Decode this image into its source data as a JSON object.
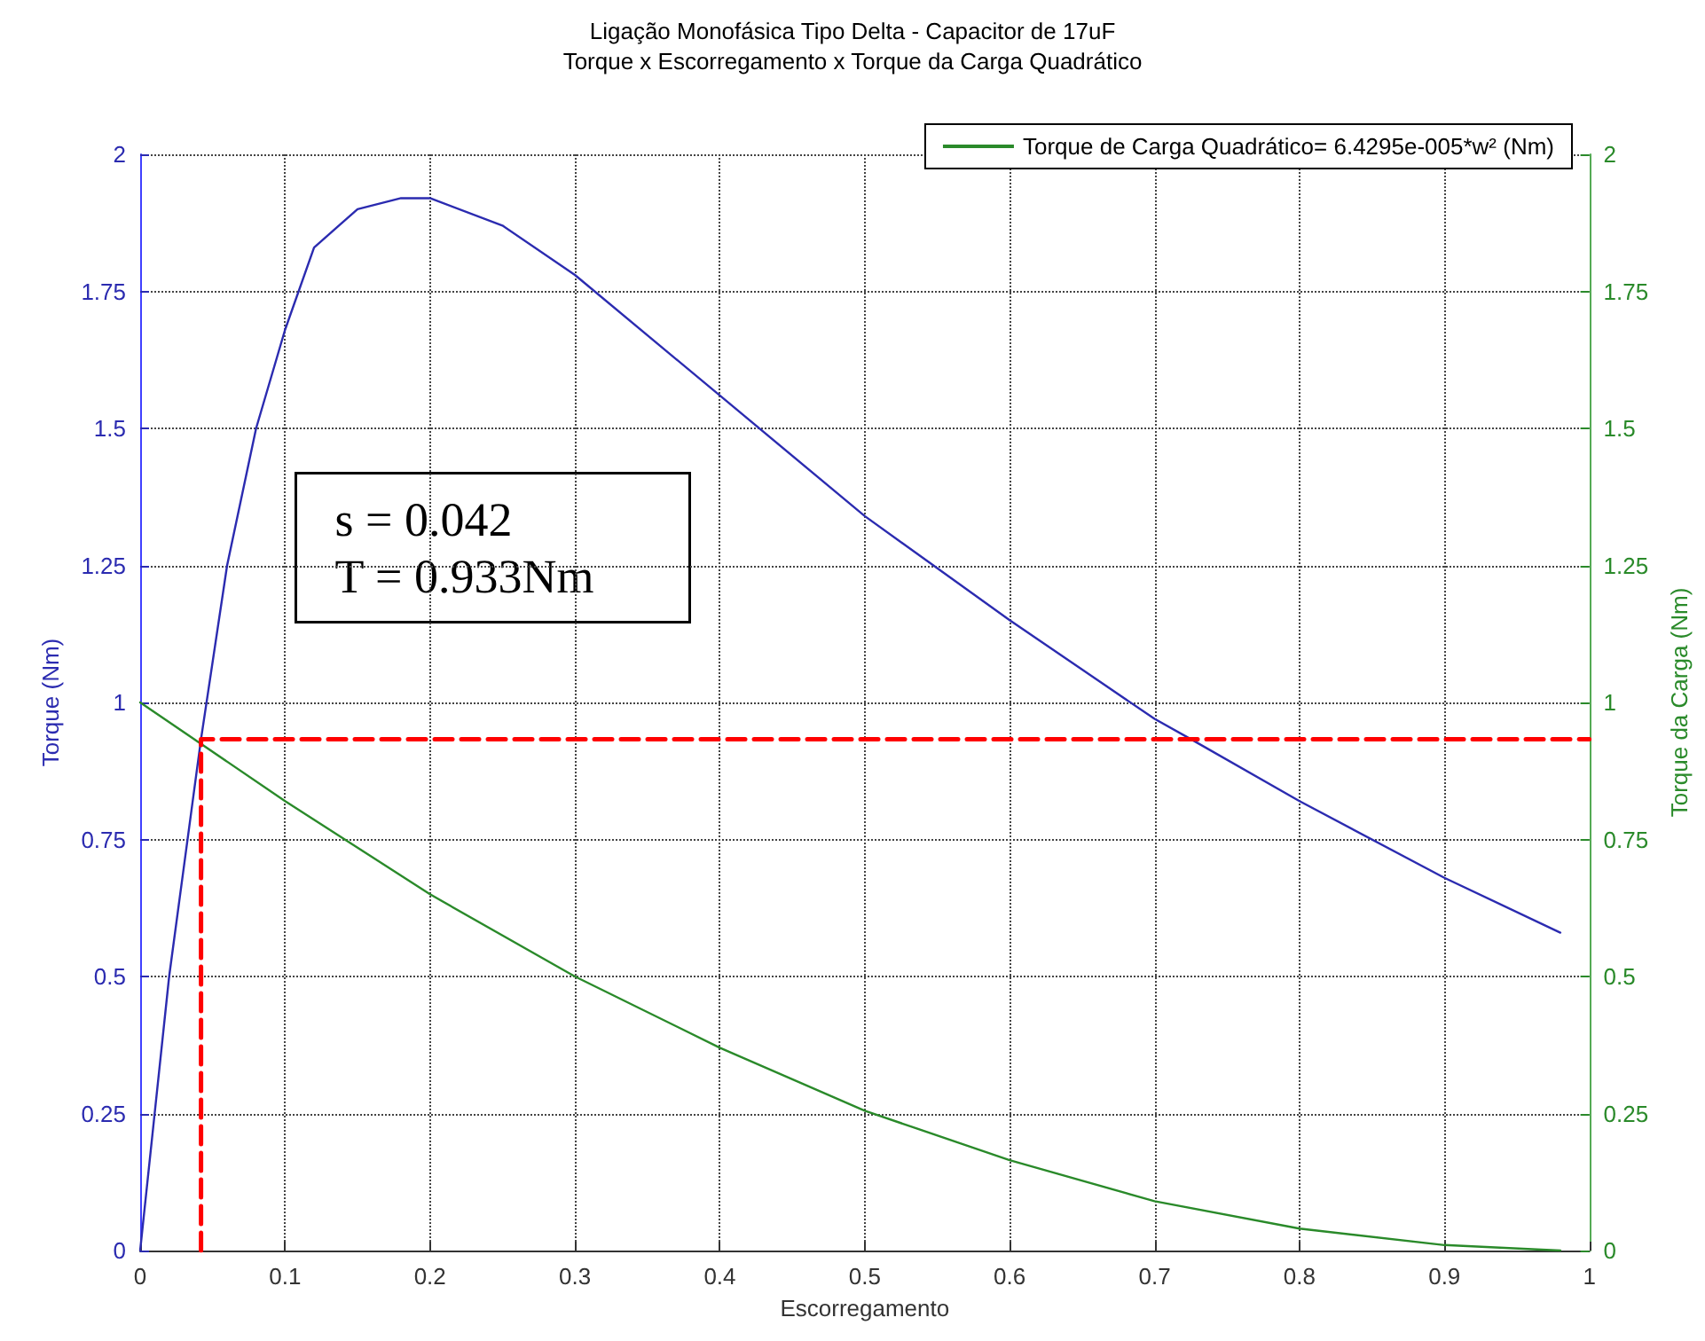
{
  "chart_data": {
    "type": "line",
    "title": "Ligação Monofásica Tipo Delta - Capacitor de 17uF",
    "subtitle": "Torque x Escorregamento x Torque da Carga Quadrático",
    "xlabel": "Escorregamento",
    "ylabel": "Torque (Nm)",
    "y2label": "Torque da Carga (Nm)",
    "xlim": [
      0,
      1
    ],
    "xticks": [
      0,
      0.1,
      0.2,
      0.3,
      0.4,
      0.5,
      0.6,
      0.7,
      0.8,
      0.9,
      1
    ],
    "ylim": [
      0,
      2
    ],
    "yticks": [
      0,
      0.25,
      0.5,
      0.75,
      1,
      1.25,
      1.5,
      1.75,
      2
    ],
    "y2lim": [
      0,
      2
    ],
    "y2ticks": [
      0,
      0.25,
      0.5,
      0.75,
      1,
      1.25,
      1.5,
      1.75,
      2
    ],
    "grid": true,
    "legend": "top right",
    "marker": "none",
    "annotations": [
      "s = 0.042",
      "T = 0.933Nm"
    ],
    "series": [
      {
        "color": "#2b2bb0",
        "x": [
          0,
          0.02,
          0.042,
          0.06,
          0.08,
          0.1,
          0.12,
          0.15,
          0.18,
          0.2,
          0.25,
          0.3,
          0.4,
          0.5,
          0.6,
          0.7,
          0.725,
          0.8,
          0.9,
          0.98
        ],
        "values": [
          0,
          0.5,
          0.933,
          1.25,
          1.5,
          1.68,
          1.83,
          1.9,
          1.92,
          1.92,
          1.87,
          1.78,
          1.56,
          1.34,
          1.15,
          0.97,
          0.933,
          0.82,
          0.68,
          0.58
        ]
      },
      {
        "name": "Torque de Carga Quadrático= 6.4295e-005*w² (Nm)",
        "color": "#2a8a2a",
        "axis": "y2",
        "x": [
          0,
          0.1,
          0.2,
          0.3,
          0.4,
          0.5,
          0.6,
          0.7,
          0.8,
          0.9,
          0.98
        ],
        "values": [
          1,
          0.82,
          0.65,
          0.5,
          0.37,
          0.255,
          0.165,
          0.09,
          0.04,
          0.01,
          0
        ]
      },
      {
        "type": "line",
        "color": "#ff0000",
        "line_style": "dashed",
        "x": [
          0.042,
          0.042,
          1
        ],
        "values": [
          0,
          0.933,
          0.933
        ]
      }
    ]
  }
}
